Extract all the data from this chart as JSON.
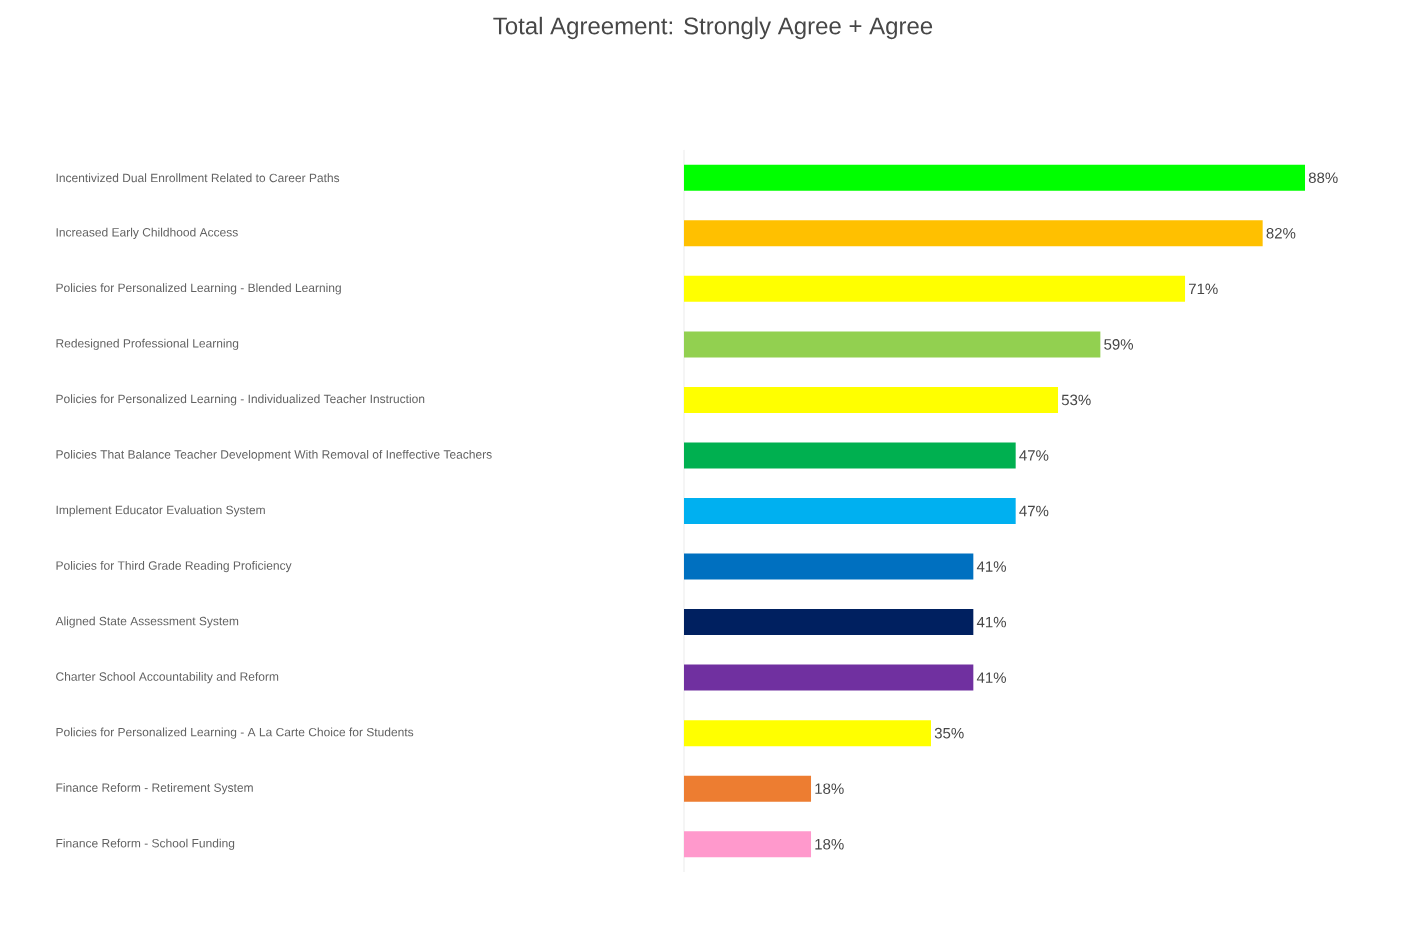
{
  "chart_data": {
    "type": "bar",
    "orientation": "horizontal",
    "title": "Total Agreement: Strongly Agree + Agree",
    "categories": [
      "Incentivized Dual Enrollment Related to Career Paths",
      "Increased Early Childhood Access",
      "Policies for Personalized Learning - Blended Learning",
      "Redesigned Professional Learning",
      "Policies for Personalized Learning - Individualized Teacher Instruction",
      "Policies That Balance Teacher Development With Removal of Ineffective Teachers",
      "Implement Educator Evaluation System",
      "Policies for Third Grade Reading Proficiency",
      "Aligned State Assessment System",
      "Charter School Accountability and Reform",
      "Policies for Personalized Learning - A La Carte Choice for Students",
      "Finance Reform - Retirement System",
      "Finance Reform - School Funding"
    ],
    "values": [
      88,
      82,
      71,
      59,
      53,
      47,
      47,
      41,
      41,
      41,
      35,
      18,
      18
    ],
    "value_labels": [
      "88%",
      "82%",
      "71%",
      "59%",
      "53%",
      "47%",
      "47%",
      "41%",
      "41%",
      "41%",
      "35%",
      "18%",
      "18%"
    ],
    "colors": [
      "#00ff00",
      "#ffc000",
      "#ffff00",
      "#92d050",
      "#ffff00",
      "#00b050",
      "#00b0f0",
      "#0070c0",
      "#002060",
      "#7030a0",
      "#ffff00",
      "#ed7d31",
      "#ff99cc"
    ]
  }
}
